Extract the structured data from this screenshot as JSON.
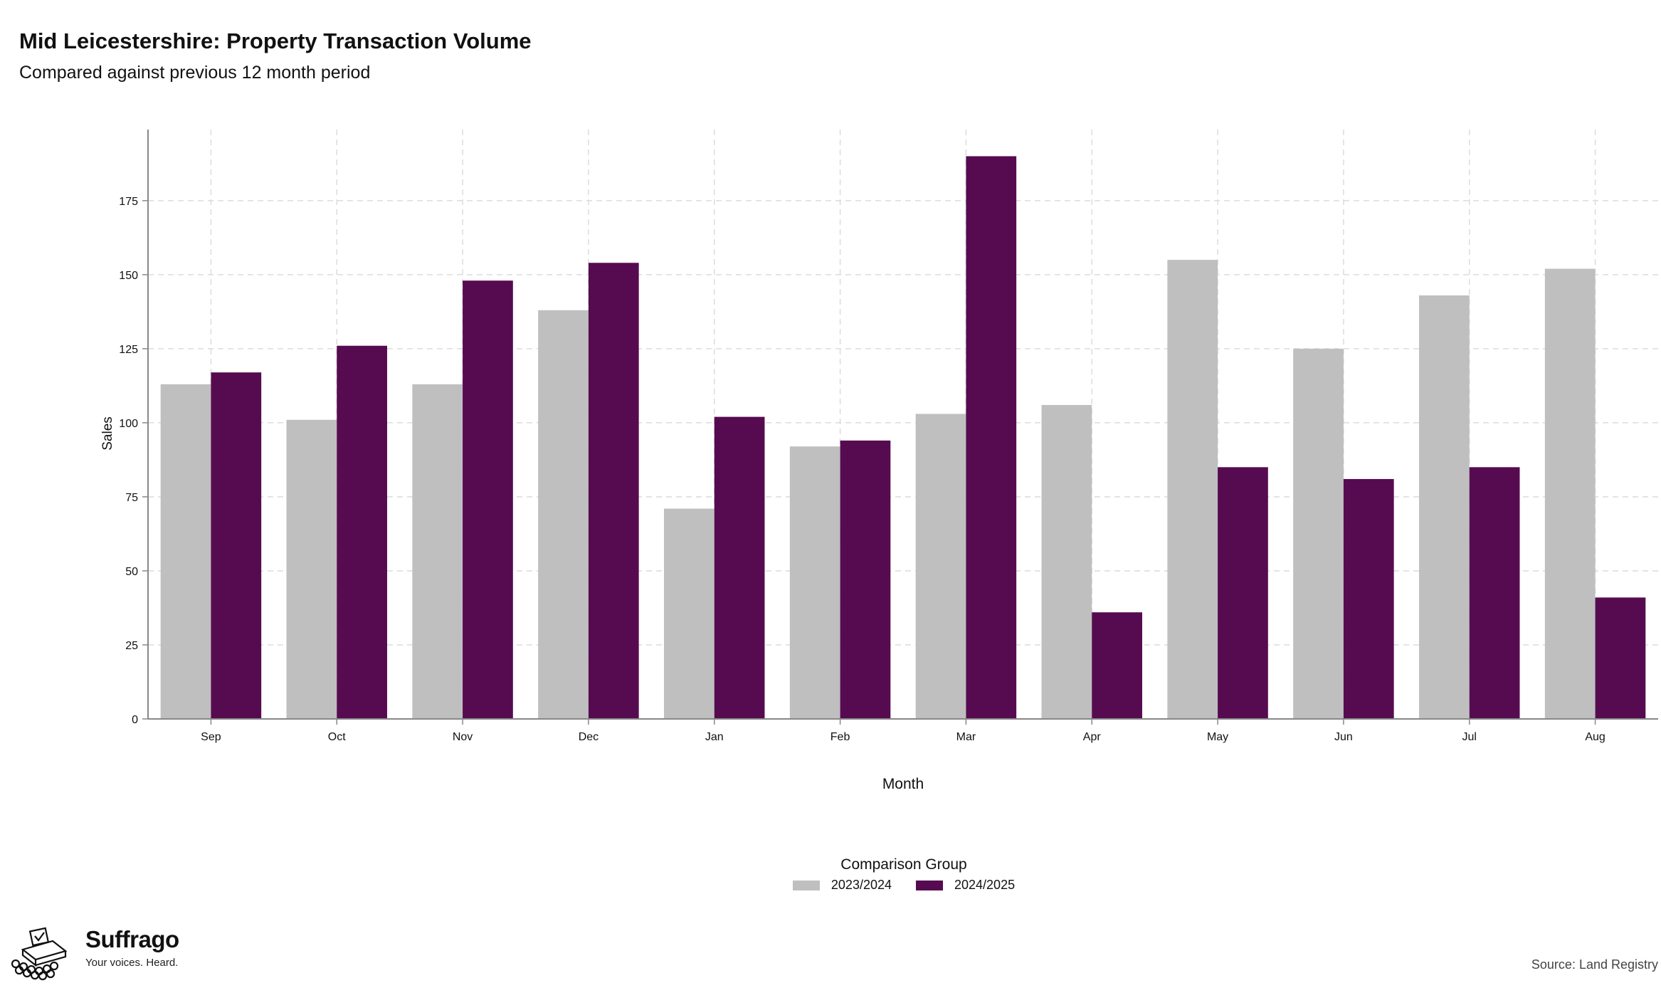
{
  "title": "Mid Leicestershire: Property Transaction Volume",
  "subtitle": "Compared against previous 12 month period",
  "source": "Source: Land Registry",
  "brand": {
    "name": "Suffrago",
    "tagline": "Your voices. Heard.",
    "logo_icon": "ballot-box-icon"
  },
  "legend": {
    "title": "Comparison Group",
    "position": "bottom-center"
  },
  "colors": {
    "series_2023": "#bfbfbf",
    "series_2024": "#560b51",
    "grid": "#dcdcdc",
    "axis": "#888888"
  },
  "chart_data": {
    "type": "bar",
    "title": "Mid Leicestershire: Property Transaction Volume",
    "subtitle": "Compared against previous 12 month period",
    "xlabel": "Month",
    "ylabel": "Sales",
    "categories": [
      "Sep",
      "Oct",
      "Nov",
      "Dec",
      "Jan",
      "Feb",
      "Mar",
      "Apr",
      "May",
      "Jun",
      "Jul",
      "Aug"
    ],
    "series": [
      {
        "name": "2023/2024",
        "values": [
          113,
          101,
          113,
          138,
          71,
          92,
          103,
          106,
          155,
          125,
          143,
          152
        ]
      },
      {
        "name": "2024/2025",
        "values": [
          117,
          126,
          148,
          154,
          102,
          94,
          190,
          36,
          85,
          81,
          85,
          41
        ]
      }
    ],
    "ylim": [
      0,
      199
    ],
    "yticks": [
      0,
      25,
      50,
      75,
      100,
      125,
      150,
      175
    ],
    "grid": true,
    "legend_position": "bottom"
  }
}
